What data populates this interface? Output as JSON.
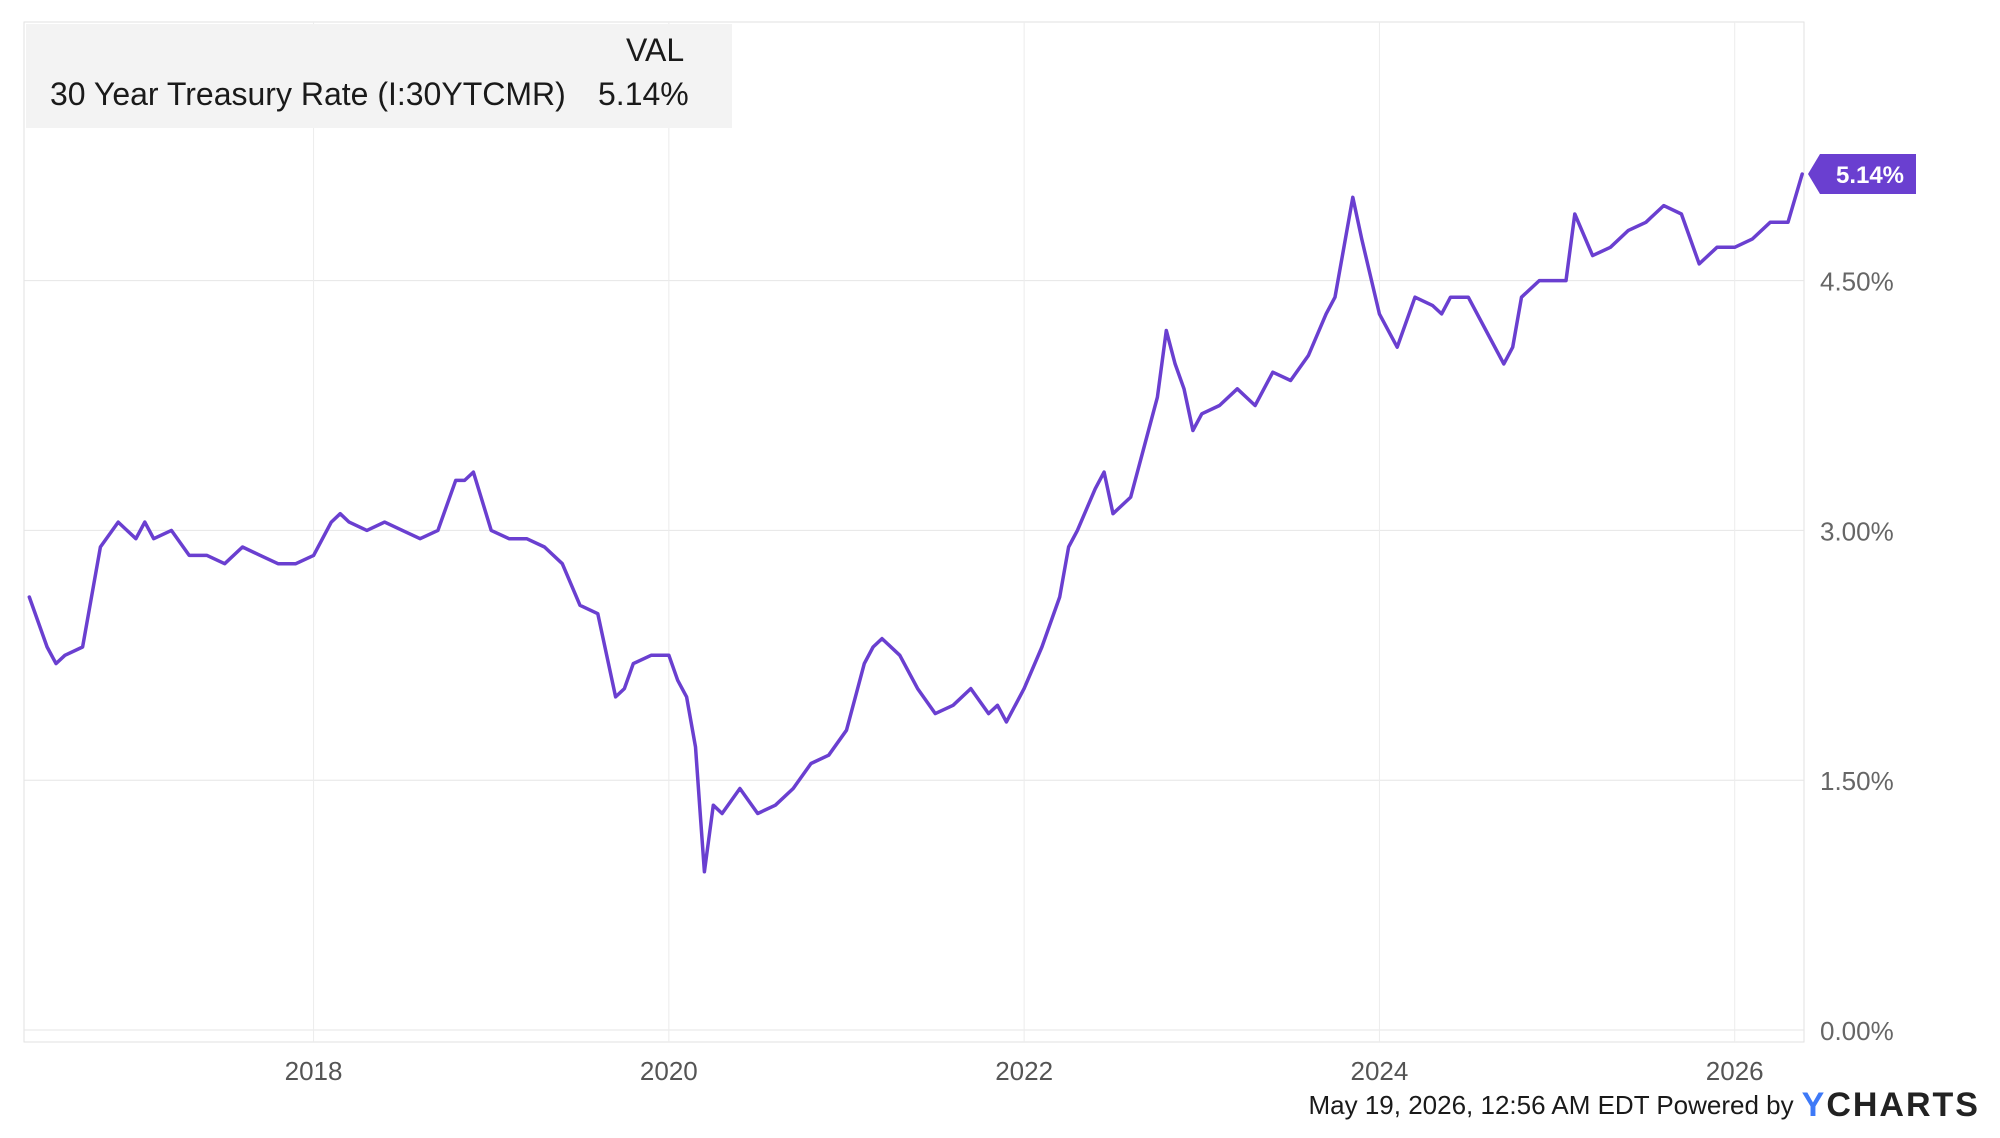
{
  "chart_data": {
    "type": "line",
    "title": "",
    "xlabel": "",
    "ylabel": "",
    "x_tick_labels": [
      "2018",
      "2020",
      "2022",
      "2024",
      "2026"
    ],
    "y_tick_labels": [
      "0.00%",
      "1.50%",
      "3.00%",
      "4.50%"
    ],
    "ylim": [
      0,
      5.14
    ],
    "grid": true,
    "legend": {
      "position": "top-left",
      "header": "VAL"
    },
    "series": [
      {
        "name": "30 Year Treasury Rate (I:30YTCMR)",
        "last_value_label": "5.14%",
        "color": "#6a3fd0",
        "x": [
          2016.4,
          2016.45,
          2016.5,
          2016.55,
          2016.6,
          2016.7,
          2016.8,
          2016.9,
          2016.95,
          2017.0,
          2017.05,
          2017.1,
          2017.2,
          2017.3,
          2017.4,
          2017.5,
          2017.6,
          2017.7,
          2017.8,
          2017.9,
          2018.0,
          2018.1,
          2018.15,
          2018.2,
          2018.3,
          2018.4,
          2018.5,
          2018.6,
          2018.7,
          2018.8,
          2018.85,
          2018.9,
          2019.0,
          2019.1,
          2019.2,
          2019.3,
          2019.4,
          2019.5,
          2019.6,
          2019.7,
          2019.75,
          2019.8,
          2019.9,
          2020.0,
          2020.05,
          2020.1,
          2020.15,
          2020.18,
          2020.2,
          2020.25,
          2020.3,
          2020.4,
          2020.5,
          2020.6,
          2020.7,
          2020.8,
          2020.9,
          2021.0,
          2021.05,
          2021.1,
          2021.15,
          2021.2,
          2021.3,
          2021.4,
          2021.5,
          2021.6,
          2021.7,
          2021.8,
          2021.85,
          2021.9,
          2022.0,
          2022.1,
          2022.2,
          2022.25,
          2022.3,
          2022.4,
          2022.45,
          2022.5,
          2022.6,
          2022.7,
          2022.75,
          2022.8,
          2022.85,
          2022.9,
          2022.95,
          2023.0,
          2023.1,
          2023.2,
          2023.3,
          2023.4,
          2023.5,
          2023.6,
          2023.7,
          2023.75,
          2023.8,
          2023.85,
          2023.9,
          2024.0,
          2024.1,
          2024.2,
          2024.3,
          2024.35,
          2024.4,
          2024.5,
          2024.6,
          2024.7,
          2024.75,
          2024.8,
          2024.9,
          2025.0,
          2025.05,
          2025.1,
          2025.2,
          2025.3,
          2025.4,
          2025.5,
          2025.6,
          2025.7,
          2025.8,
          2025.9,
          2026.0,
          2026.1,
          2026.2,
          2026.3,
          2026.38
        ],
        "y": [
          2.6,
          2.45,
          2.3,
          2.2,
          2.25,
          2.3,
          2.9,
          3.05,
          3.0,
          2.95,
          3.05,
          2.95,
          3.0,
          2.85,
          2.85,
          2.8,
          2.9,
          2.85,
          2.8,
          2.8,
          2.85,
          3.05,
          3.1,
          3.05,
          3.0,
          3.05,
          3.0,
          2.95,
          3.0,
          3.3,
          3.3,
          3.35,
          3.0,
          2.95,
          2.95,
          2.9,
          2.8,
          2.55,
          2.5,
          2.0,
          2.05,
          2.2,
          2.25,
          2.25,
          2.1,
          2.0,
          1.7,
          1.25,
          0.95,
          1.35,
          1.3,
          1.45,
          1.3,
          1.35,
          1.45,
          1.6,
          1.65,
          1.8,
          2.0,
          2.2,
          2.3,
          2.35,
          2.25,
          2.05,
          1.9,
          1.95,
          2.05,
          1.9,
          1.95,
          1.85,
          2.05,
          2.3,
          2.6,
          2.9,
          3.0,
          3.25,
          3.35,
          3.1,
          3.2,
          3.6,
          3.8,
          4.2,
          4.0,
          3.85,
          3.6,
          3.7,
          3.75,
          3.85,
          3.75,
          3.95,
          3.9,
          4.05,
          4.3,
          4.4,
          4.7,
          5.0,
          4.75,
          4.3,
          4.1,
          4.4,
          4.35,
          4.3,
          4.4,
          4.4,
          4.2,
          4.0,
          4.1,
          4.4,
          4.5,
          4.5,
          4.5,
          4.9,
          4.65,
          4.7,
          4.8,
          4.85,
          4.95,
          4.9,
          4.6,
          4.7,
          4.7,
          4.75,
          4.85,
          4.85,
          5.14
        ]
      }
    ]
  },
  "footer": {
    "timestamp": "May 19, 2026, 12:56 AM EDT Powered by",
    "brand_y": "Y",
    "brand_rest": "CHARTS"
  }
}
